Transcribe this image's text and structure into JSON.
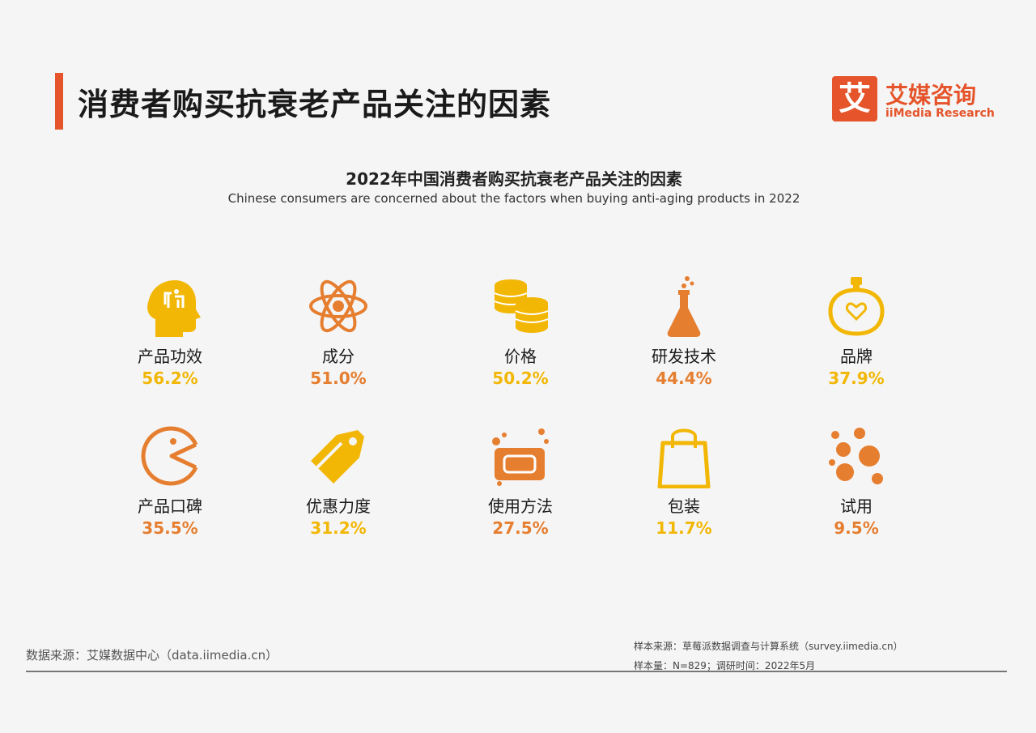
{
  "header": {
    "title": "消费者购买抗衰老产品关注的因素",
    "logo_mark": "艾",
    "logo_cn": "艾媒咨询",
    "logo_en": "iiMedia Research"
  },
  "chart_data": {
    "type": "table",
    "title": "2022年中国消费者购买抗衰老产品关注的因素",
    "subtitle": "Chinese consumers are concerned about the factors when buying anti-aging products in 2022",
    "items": [
      {
        "label": "产品功效",
        "value": "56.2%",
        "color": "#f2b705",
        "icon": "head-gear-icon"
      },
      {
        "label": "成分",
        "value": "51.0%",
        "color": "#e67e30",
        "icon": "atom-icon"
      },
      {
        "label": "价格",
        "value": "50.2%",
        "color": "#f2b705",
        "icon": "coins-icon"
      },
      {
        "label": "研发技术",
        "value": "44.4%",
        "color": "#e67e30",
        "icon": "flask-icon"
      },
      {
        "label": "品牌",
        "value": "37.9%",
        "color": "#f2b705",
        "icon": "perfume-icon"
      },
      {
        "label": "产品口碑",
        "value": "35.5%",
        "color": "#e67e30",
        "icon": "pacman-icon"
      },
      {
        "label": "优惠力度",
        "value": "31.2%",
        "color": "#f2b705",
        "icon": "tag-icon"
      },
      {
        "label": "使用方法",
        "value": "27.5%",
        "color": "#e67e30",
        "icon": "soap-icon"
      },
      {
        "label": "包装",
        "value": "11.7%",
        "color": "#f2b705",
        "icon": "shopping-bag-icon"
      },
      {
        "label": "试用",
        "value": "9.5%",
        "color": "#e67e30",
        "icon": "bubbles-icon"
      }
    ]
  },
  "footer": {
    "source": "数据来源：艾媒数据中心（data.iimedia.cn）",
    "sample_source": "样本来源：草莓派数据调查与计算系统（survey.iimedia.cn）",
    "sample_size": "样本量：N=829；调研时间：2022年5月"
  }
}
